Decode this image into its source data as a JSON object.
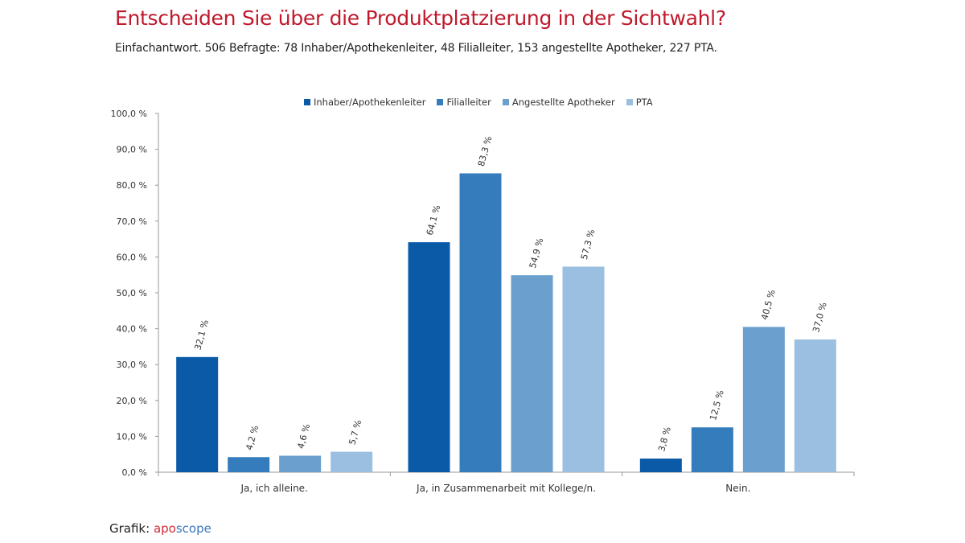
{
  "header": {
    "title": "Entscheiden Sie über die Produktplatzierung in der Sichtwahl?",
    "subtitle": "Einfachantwort. 506 Befragte: 78 Inhaber/Apothekenleiter, 48 Filialleiter, 153 angestellte Apotheker, 227 PTA."
  },
  "footer": {
    "prefix": "Grafik: ",
    "brand_part1": "apo",
    "brand_part2": "scope"
  },
  "chart_data": {
    "type": "bar",
    "title": "Entscheiden Sie über die Produktplatzierung in der Sichtwahl?",
    "xlabel": "",
    "ylabel": "",
    "ylim": [
      0,
      100
    ],
    "y_ticks": [
      0,
      10,
      20,
      30,
      40,
      50,
      60,
      70,
      80,
      90,
      100
    ],
    "y_tick_labels": [
      "0,0 %",
      "10,0 %",
      "20,0 %",
      "30,0 %",
      "40,0 %",
      "50,0 %",
      "60,0 %",
      "70,0 %",
      "80,0 %",
      "90,0 %",
      "100,0 %"
    ],
    "grid": false,
    "legend_position": "top",
    "categories": [
      "Ja, ich alleine.",
      "Ja, in Zusammenarbeit mit Kollege/n.",
      "Nein."
    ],
    "series": [
      {
        "name": "Inhaber/Apothekenleiter",
        "color": "#0a5aa8",
        "values": [
          32.1,
          64.1,
          3.8
        ],
        "labels": [
          "32,1 %",
          "64,1 %",
          "3,8 %"
        ]
      },
      {
        "name": "Filialleiter",
        "color": "#347cbb",
        "values": [
          4.2,
          83.3,
          12.5
        ],
        "labels": [
          "4,2 %",
          "83,3 %",
          "12,5 %"
        ]
      },
      {
        "name": "Angestellte Apotheker",
        "color": "#6a9fce",
        "values": [
          4.6,
          54.9,
          40.5
        ],
        "labels": [
          "4,6 %",
          "54,9 %",
          "40,5 %"
        ]
      },
      {
        "name": "PTA",
        "color": "#9bbfe0",
        "values": [
          5.7,
          57.3,
          37.0
        ],
        "labels": [
          "5,7 %",
          "57,3 %",
          "37,0 %"
        ]
      }
    ]
  }
}
